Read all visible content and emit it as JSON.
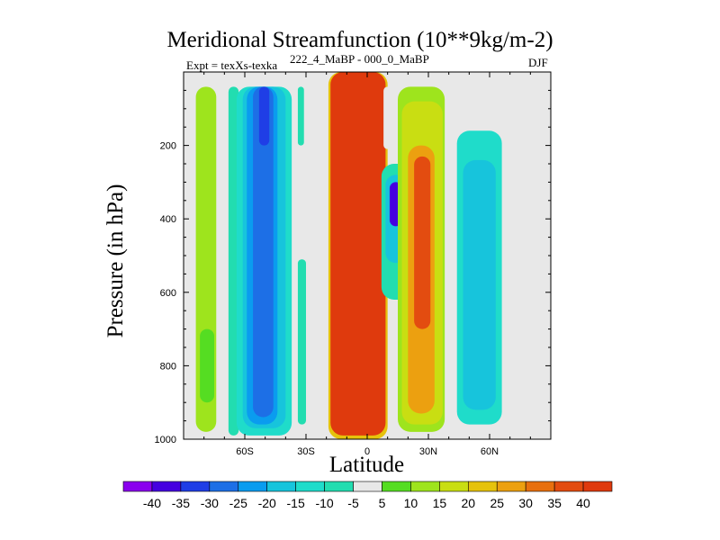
{
  "chart_data": {
    "type": "heatmap",
    "title": "Meridional Streamfunction (10**9kg/m-2)",
    "left_subtitle": "Expt = texXs-texka",
    "center_subtitle": "222_4_MaBP - 000_0_MaBP",
    "right_subtitle": "DJF",
    "xlabel": "Latitude",
    "ylabel": "Pressure (in hPa)",
    "xlim": [
      -90,
      90
    ],
    "ylim": [
      1000,
      0
    ],
    "x_ticks": [
      {
        "value": -60,
        "label": "60S"
      },
      {
        "value": -30,
        "label": "30S"
      },
      {
        "value": 0,
        "label": "0"
      },
      {
        "value": 30,
        "label": "30N"
      },
      {
        "value": 60,
        "label": "60N"
      }
    ],
    "y_ticks": [
      {
        "value": 200,
        "label": "200"
      },
      {
        "value": 400,
        "label": "400"
      },
      {
        "value": 600,
        "label": "600"
      },
      {
        "value": 800,
        "label": "800"
      },
      {
        "value": 1000,
        "label": "1000"
      }
    ],
    "colorbar": {
      "labels": [
        "-40",
        "-35",
        "-30",
        "-25",
        "-20",
        "-15",
        "-10",
        "-5",
        "5",
        "10",
        "15",
        "20",
        "25",
        "30",
        "35",
        "40"
      ],
      "colors": [
        "#8a00ee",
        "#4500e0",
        "#1f3ee6",
        "#1d6fe6",
        "#0a9cef",
        "#17c4dc",
        "#1fdcca",
        "#22ddb0",
        "#e8e8e8",
        "#55dd22",
        "#9ee41d",
        "#c9de12",
        "#e6c20c",
        "#eca010",
        "#e8700f",
        "#e34c10",
        "#df3a0d"
      ]
    },
    "cells": [
      {
        "x0": -84,
        "x1": -74,
        "p0": 40,
        "p1": 980,
        "v": 10
      },
      {
        "x0": -82,
        "x1": -75,
        "p0": 700,
        "p1": 900,
        "v": 5
      },
      {
        "x0": -68,
        "x1": -63,
        "p0": 40,
        "p1": 990,
        "v": -10
      },
      {
        "x0": -64,
        "x1": -37,
        "p0": 40,
        "p1": 990,
        "v": -15
      },
      {
        "x0": -61,
        "x1": -40,
        "p0": 40,
        "p1": 970,
        "v": -20
      },
      {
        "x0": -59,
        "x1": -44,
        "p0": 40,
        "p1": 960,
        "v": -25
      },
      {
        "x0": -56,
        "x1": -46,
        "p0": 40,
        "p1": 940,
        "v": -30
      },
      {
        "x0": -53,
        "x1": -48,
        "p0": 40,
        "p1": 200,
        "v": -35
      },
      {
        "x0": -34,
        "x1": -31,
        "p0": 40,
        "p1": 200,
        "v": -10
      },
      {
        "x0": -34,
        "x1": -30,
        "p0": 510,
        "p1": 960,
        "v": -10
      },
      {
        "x0": -29,
        "x1": -25,
        "p0": 180,
        "p1": 980,
        "v": -5
      },
      {
        "x0": -19,
        "x1": 10,
        "p0": 0,
        "p1": 1000,
        "v": 20
      },
      {
        "x0": -18,
        "x1": 9,
        "p0": 0,
        "p1": 990,
        "v": 40
      },
      {
        "x0": 7,
        "x1": 22,
        "p0": 250,
        "p1": 620,
        "v": -10
      },
      {
        "x0": 9,
        "x1": 19,
        "p0": 280,
        "p1": 520,
        "v": -20
      },
      {
        "x0": 11,
        "x1": 17,
        "p0": 300,
        "p1": 420,
        "v": -40
      },
      {
        "x0": 8,
        "x1": 12,
        "p0": 40,
        "p1": 210,
        "v": -5
      },
      {
        "x0": 15,
        "x1": 38,
        "p0": 40,
        "p1": 980,
        "v": 10
      },
      {
        "x0": 17,
        "x1": 37,
        "p0": 80,
        "p1": 960,
        "v": 15
      },
      {
        "x0": 20,
        "x1": 33,
        "p0": 200,
        "p1": 930,
        "v": 25
      },
      {
        "x0": 23,
        "x1": 31,
        "p0": 230,
        "p1": 700,
        "v": 35
      },
      {
        "x0": 40,
        "x1": 73,
        "p0": 40,
        "p1": 980,
        "v": -5
      },
      {
        "x0": 44,
        "x1": 66,
        "p0": 160,
        "p1": 960,
        "v": -15
      },
      {
        "x0": 47,
        "x1": 63,
        "p0": 240,
        "p1": 920,
        "v": -20
      },
      {
        "x0": 80,
        "x1": 82,
        "p0": 100,
        "p1": 200,
        "v": -5
      }
    ]
  }
}
